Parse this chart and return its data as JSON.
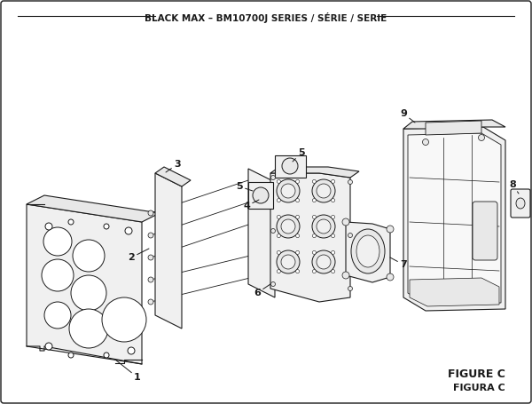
{
  "title": "BLACK MAX – BM10700J SERIES / SÉRIE / SERIE",
  "figure_label": "FIGURE C",
  "figura_label": "FIGURA C",
  "bg_color": "#ffffff",
  "lc": "#1a1a1a",
  "lc_light": "#555555",
  "fc_white": "#ffffff",
  "fc_vlight": "#f0f0f0",
  "fc_light": "#e8e8e8",
  "fc_mid": "#d0d0d0",
  "title_fontsize": 7.5,
  "label_fontsize": 8
}
